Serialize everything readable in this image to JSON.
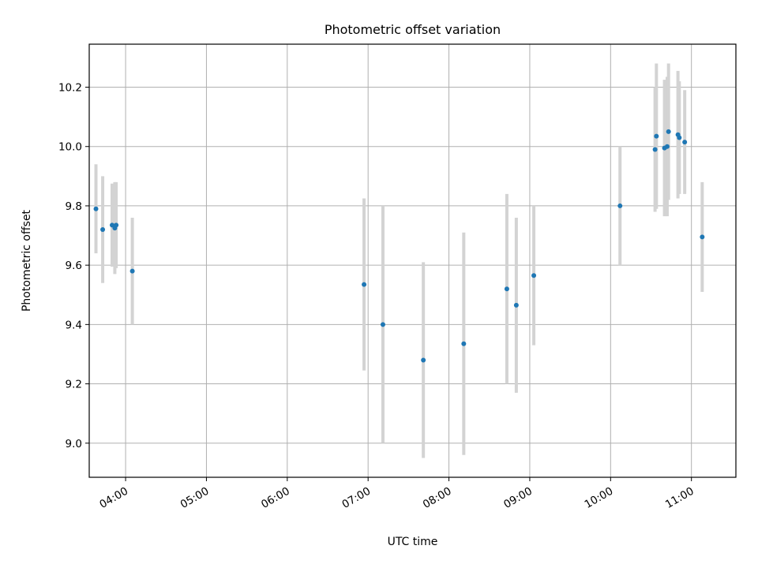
{
  "chart_data": {
    "type": "scatter",
    "title": "Photometric offset variation",
    "xlabel": "UTC time",
    "ylabel": "Photometric offset",
    "grid": true,
    "xlim": [
      "03:33",
      "11:33"
    ],
    "ylim": [
      8.885,
      10.345
    ],
    "x_ticks": [
      "04:00",
      "05:00",
      "06:00",
      "07:00",
      "08:00",
      "09:00",
      "10:00",
      "11:00"
    ],
    "y_ticks": [
      9.0,
      9.2,
      9.4,
      9.6,
      9.8,
      10.0,
      10.2
    ],
    "y_tick_labels": [
      "9.0",
      "9.2",
      "9.4",
      "9.6",
      "9.8",
      "10.0",
      "10.2"
    ],
    "point_color": "#1f77b4",
    "errorbar_color": "#d3d3d3",
    "points": [
      {
        "t": "03:38",
        "y": 9.79,
        "err": 0.15
      },
      {
        "t": "03:43",
        "y": 9.72,
        "err": 0.18
      },
      {
        "t": "03:50",
        "y": 9.735,
        "err": 0.14
      },
      {
        "t": "03:52",
        "y": 9.725,
        "err": 0.155
      },
      {
        "t": "03:53",
        "y": 9.735,
        "err": 0.145
      },
      {
        "t": "04:05",
        "y": 9.58,
        "err": 0.18
      },
      {
        "t": "06:57",
        "y": 9.535,
        "err": 0.29
      },
      {
        "t": "07:11",
        "y": 9.4,
        "err": 0.4
      },
      {
        "t": "07:41",
        "y": 9.28,
        "err": 0.33
      },
      {
        "t": "08:11",
        "y": 9.335,
        "err": 0.375
      },
      {
        "t": "08:43",
        "y": 9.52,
        "err": 0.32
      },
      {
        "t": "08:50",
        "y": 9.465,
        "err": 0.295
      },
      {
        "t": "09:03",
        "y": 9.565,
        "err": 0.235
      },
      {
        "t": "10:07",
        "y": 9.8,
        "err": 0.2
      },
      {
        "t": "10:33",
        "y": 9.99,
        "err": 0.21
      },
      {
        "t": "10:34",
        "y": 10.035,
        "err": 0.245
      },
      {
        "t": "10:40",
        "y": 9.995,
        "err": 0.23
      },
      {
        "t": "10:42",
        "y": 10.0,
        "err": 0.235
      },
      {
        "t": "10:43",
        "y": 10.05,
        "err": 0.23
      },
      {
        "t": "10:50",
        "y": 10.04,
        "err": 0.215
      },
      {
        "t": "10:51",
        "y": 10.03,
        "err": 0.19
      },
      {
        "t": "10:55",
        "y": 10.015,
        "err": 0.175
      },
      {
        "t": "11:08",
        "y": 9.695,
        "err": 0.185
      }
    ]
  }
}
